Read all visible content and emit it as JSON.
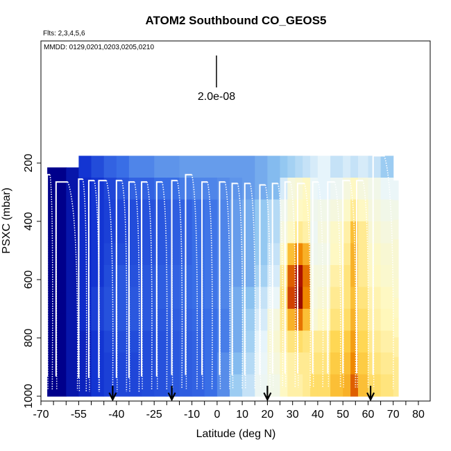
{
  "chart_data": {
    "type": "heatmap",
    "title": "ATOM2 Southbound CO_GEOS5",
    "flights_label": "Flts: 2,3,4,5,6",
    "dates_label": "MMDD: 0129,0201,0203,0205,0210",
    "xlabel": "Latitude (deg N)",
    "ylabel": "PSXC (mbar)",
    "xlim": [
      -70,
      80
    ],
    "ylim": [
      1000,
      200
    ],
    "x_ticks": [
      -70,
      -55,
      -40,
      -25,
      -10,
      0,
      10,
      20,
      30,
      40,
      50,
      60,
      70,
      80
    ],
    "y_ticks": [
      200,
      400,
      600,
      800,
      1000
    ],
    "scale_bar_label": "2.0e-08",
    "colormap": [
      "#00008b",
      "#1030d0",
      "#3a6fe6",
      "#8ec5f0",
      "#eaf6fb",
      "#fff8c0",
      "#ffd54d",
      "#f08a00",
      "#c01a00",
      "#7a0000"
    ],
    "arrow_latitudes": [
      -41.5,
      -18,
      20,
      61
    ],
    "bins": [
      {
        "lat": [
          -67.5,
          -60
        ],
        "top": 215,
        "bottom": 1000,
        "profile": [
          0,
          0,
          0,
          0,
          0,
          0,
          0,
          0,
          0,
          0,
          0
        ]
      },
      {
        "lat": [
          -60,
          -55
        ],
        "top": 215,
        "bottom": 1000,
        "profile": [
          0.05,
          0.05,
          0.05,
          0.05,
          0.05,
          0.05,
          0.05,
          0.05,
          0.05,
          0.05,
          0.05
        ]
      },
      {
        "lat": [
          -55,
          -50
        ],
        "top": 175,
        "bottom": 1000,
        "profile": [
          0.12,
          0.1,
          0.1,
          0.1,
          0.1,
          0.1,
          0.1,
          0.1,
          0.08,
          0.08,
          0.08
        ]
      },
      {
        "lat": [
          -50,
          -45
        ],
        "top": 175,
        "bottom": 1000,
        "profile": [
          0.16,
          0.12,
          0.12,
          0.12,
          0.12,
          0.12,
          0.14,
          0.14,
          0.12,
          0.12,
          0.12
        ]
      },
      {
        "lat": [
          -45,
          -40
        ],
        "top": 175,
        "bottom": 1000,
        "profile": [
          0.2,
          0.15,
          0.14,
          0.14,
          0.15,
          0.16,
          0.17,
          0.17,
          0.15,
          0.14,
          0.14
        ]
      },
      {
        "lat": [
          -40,
          -35
        ],
        "top": 175,
        "bottom": 1000,
        "profile": [
          0.22,
          0.18,
          0.15,
          0.15,
          0.16,
          0.18,
          0.18,
          0.18,
          0.16,
          0.15,
          0.15
        ]
      },
      {
        "lat": [
          -35,
          -30
        ],
        "top": 175,
        "bottom": 1000,
        "profile": [
          0.25,
          0.2,
          0.16,
          0.16,
          0.16,
          0.17,
          0.18,
          0.18,
          0.16,
          0.15,
          0.15
        ]
      },
      {
        "lat": [
          -30,
          -25
        ],
        "top": 175,
        "bottom": 1000,
        "profile": [
          0.25,
          0.2,
          0.17,
          0.17,
          0.17,
          0.18,
          0.18,
          0.18,
          0.16,
          0.16,
          0.16
        ]
      },
      {
        "lat": [
          -25,
          -20
        ],
        "top": 175,
        "bottom": 1000,
        "profile": [
          0.27,
          0.22,
          0.18,
          0.18,
          0.18,
          0.19,
          0.19,
          0.18,
          0.17,
          0.17,
          0.17
        ]
      },
      {
        "lat": [
          -20,
          -15
        ],
        "top": 175,
        "bottom": 1000,
        "profile": [
          0.27,
          0.22,
          0.19,
          0.19,
          0.19,
          0.2,
          0.2,
          0.19,
          0.18,
          0.18,
          0.18
        ]
      },
      {
        "lat": [
          -15,
          -10
        ],
        "top": 175,
        "bottom": 1000,
        "profile": [
          0.28,
          0.24,
          0.2,
          0.2,
          0.2,
          0.21,
          0.21,
          0.2,
          0.19,
          0.19,
          0.19
        ]
      },
      {
        "lat": [
          -10,
          -5
        ],
        "top": 175,
        "bottom": 1000,
        "profile": [
          0.28,
          0.25,
          0.22,
          0.22,
          0.22,
          0.22,
          0.22,
          0.21,
          0.2,
          0.2,
          0.2
        ]
      },
      {
        "lat": [
          -5,
          0
        ],
        "top": 175,
        "bottom": 1000,
        "profile": [
          0.28,
          0.25,
          0.23,
          0.23,
          0.23,
          0.23,
          0.23,
          0.22,
          0.22,
          0.22,
          0.22
        ]
      },
      {
        "lat": [
          0,
          5
        ],
        "top": 175,
        "bottom": 1000,
        "profile": [
          0.28,
          0.26,
          0.25,
          0.25,
          0.25,
          0.25,
          0.25,
          0.24,
          0.24,
          0.26,
          0.26
        ]
      },
      {
        "lat": [
          5,
          10
        ],
        "top": 175,
        "bottom": 1000,
        "profile": [
          0.28,
          0.27,
          0.28,
          0.28,
          0.28,
          0.28,
          0.3,
          0.3,
          0.3,
          0.32,
          0.35
        ]
      },
      {
        "lat": [
          10,
          15
        ],
        "top": 175,
        "bottom": 1000,
        "profile": [
          0.28,
          0.28,
          0.3,
          0.3,
          0.3,
          0.3,
          0.33,
          0.35,
          0.36,
          0.38,
          0.4
        ]
      },
      {
        "lat": [
          15,
          20
        ],
        "top": 175,
        "bottom": 1000,
        "profile": [
          0.3,
          0.3,
          0.34,
          0.34,
          0.34,
          0.36,
          0.4,
          0.42,
          0.44,
          0.45,
          0.46
        ]
      },
      {
        "lat": [
          20,
          25
        ],
        "top": 175,
        "bottom": 1000,
        "profile": [
          0.32,
          0.32,
          0.38,
          0.38,
          0.4,
          0.42,
          0.45,
          0.5,
          0.52,
          0.5,
          0.48
        ]
      },
      {
        "lat": [
          25,
          28
        ],
        "top": 175,
        "bottom": 1000,
        "profile": [
          0.34,
          0.42,
          0.47,
          0.5,
          0.55,
          0.6,
          0.62,
          0.6,
          0.58,
          0.56,
          0.55
        ]
      },
      {
        "lat": [
          28,
          31
        ],
        "top": 175,
        "bottom": 1000,
        "profile": [
          0.36,
          0.5,
          0.52,
          0.55,
          0.7,
          0.82,
          0.85,
          0.72,
          0.62,
          0.58,
          0.58
        ]
      },
      {
        "lat": [
          31,
          34
        ],
        "top": 175,
        "bottom": 1000,
        "profile": [
          0.38,
          0.52,
          0.55,
          0.6,
          0.78,
          0.92,
          0.95,
          0.8,
          0.64,
          0.6,
          0.58
        ]
      },
      {
        "lat": [
          34,
          37
        ],
        "top": 175,
        "bottom": 1000,
        "profile": [
          0.4,
          0.55,
          0.56,
          0.58,
          0.72,
          0.8,
          0.78,
          0.7,
          0.62,
          0.6,
          0.6
        ]
      },
      {
        "lat": [
          37,
          40
        ],
        "top": 175,
        "bottom": 1000,
        "profile": [
          0.42,
          0.45,
          0.47,
          0.46,
          0.47,
          0.5,
          0.5,
          0.52,
          0.6,
          0.62,
          0.64
        ]
      },
      {
        "lat": [
          40,
          45
        ],
        "top": 175,
        "bottom": 1000,
        "profile": [
          0.44,
          0.44,
          0.48,
          0.5,
          0.48,
          0.5,
          0.52,
          0.55,
          0.6,
          0.62,
          0.64
        ]
      },
      {
        "lat": [
          45,
          50
        ],
        "top": 175,
        "bottom": 1000,
        "profile": [
          0.4,
          0.46,
          0.5,
          0.54,
          0.55,
          0.58,
          0.6,
          0.62,
          0.66,
          0.68,
          0.7
        ]
      },
      {
        "lat": [
          50,
          53
        ],
        "top": 175,
        "bottom": 1000,
        "profile": [
          0.42,
          0.5,
          0.54,
          0.58,
          0.6,
          0.62,
          0.62,
          0.64,
          0.68,
          0.7,
          0.72
        ]
      },
      {
        "lat": [
          53,
          56
        ],
        "top": 175,
        "bottom": 1000,
        "profile": [
          0.4,
          0.55,
          0.6,
          0.7,
          0.72,
          0.72,
          0.7,
          0.72,
          0.75,
          0.78,
          0.82
        ]
      },
      {
        "lat": [
          56,
          60
        ],
        "top": 175,
        "bottom": 1000,
        "profile": [
          0.42,
          0.5,
          0.55,
          0.6,
          0.6,
          0.6,
          0.62,
          0.64,
          0.66,
          0.68,
          0.7
        ]
      },
      {
        "lat": [
          60,
          65
        ],
        "top": 175,
        "bottom": 1000,
        "profile": [
          0.4,
          0.48,
          0.5,
          0.52,
          0.54,
          0.55,
          0.57,
          0.58,
          0.6,
          0.62,
          0.64
        ]
      },
      {
        "lat": [
          65,
          70
        ],
        "top": 175,
        "bottom": 1000,
        "profile": [
          0.35,
          0.45,
          0.48,
          0.5,
          0.52,
          0.53,
          0.55,
          0.56,
          0.58,
          0.6,
          0.62
        ]
      },
      {
        "lat": [
          70,
          72
        ],
        "top": 260,
        "bottom": 1000,
        "profile": [
          0.45,
          0.48,
          0.5,
          0.52,
          0.52,
          0.53,
          0.55,
          0.56,
          0.58,
          0.6,
          0.6
        ]
      }
    ],
    "flight_profiles": [
      {
        "lat": [
          -67.5,
          -65.5
        ],
        "top": 240,
        "bottom": 980
      },
      {
        "lat": [
          -64,
          -55.5
        ],
        "top": 265,
        "bottom": 980
      },
      {
        "lat": [
          -55,
          -52
        ],
        "top": 255,
        "bottom": 985
      },
      {
        "lat": [
          -51,
          -47
        ],
        "top": 260,
        "bottom": 985
      },
      {
        "lat": [
          -47,
          -41.5
        ],
        "top": 260,
        "bottom": 985
      },
      {
        "lat": [
          -40,
          -36
        ],
        "top": 260,
        "bottom": 985
      },
      {
        "lat": [
          -35,
          -31
        ],
        "top": 265,
        "bottom": 985
      },
      {
        "lat": [
          -30,
          -26
        ],
        "top": 265,
        "bottom": 980
      },
      {
        "lat": [
          -24,
          -20
        ],
        "top": 265,
        "bottom": 980
      },
      {
        "lat": [
          -18,
          -14
        ],
        "top": 260,
        "bottom": 975
      },
      {
        "lat": [
          -12.5,
          -8
        ],
        "top": 240,
        "bottom": 975
      },
      {
        "lat": [
          -6,
          -2
        ],
        "top": 265,
        "bottom": 975
      },
      {
        "lat": [
          1,
          5
        ],
        "top": 265,
        "bottom": 975
      },
      {
        "lat": [
          6,
          10
        ],
        "top": 270,
        "bottom": 975
      },
      {
        "lat": [
          11,
          15
        ],
        "top": 270,
        "bottom": 975
      },
      {
        "lat": [
          17,
          21
        ],
        "top": 275,
        "bottom": 975
      },
      {
        "lat": [
          22,
          26
        ],
        "top": 270,
        "bottom": 970
      },
      {
        "lat": [
          27,
          31
        ],
        "top": 265,
        "bottom": 970
      },
      {
        "lat": [
          32,
          37
        ],
        "top": 270,
        "bottom": 970
      },
      {
        "lat": [
          38,
          42
        ],
        "top": 265,
        "bottom": 970
      },
      {
        "lat": [
          44,
          49
        ],
        "top": 265,
        "bottom": 970
      },
      {
        "lat": [
          50,
          55
        ],
        "top": 260,
        "bottom": 970
      },
      {
        "lat": [
          55.5,
          60
        ],
        "top": 260,
        "bottom": 970
      },
      {
        "lat": [
          62,
          70
        ],
        "top": 175,
        "bottom": 975
      }
    ]
  }
}
